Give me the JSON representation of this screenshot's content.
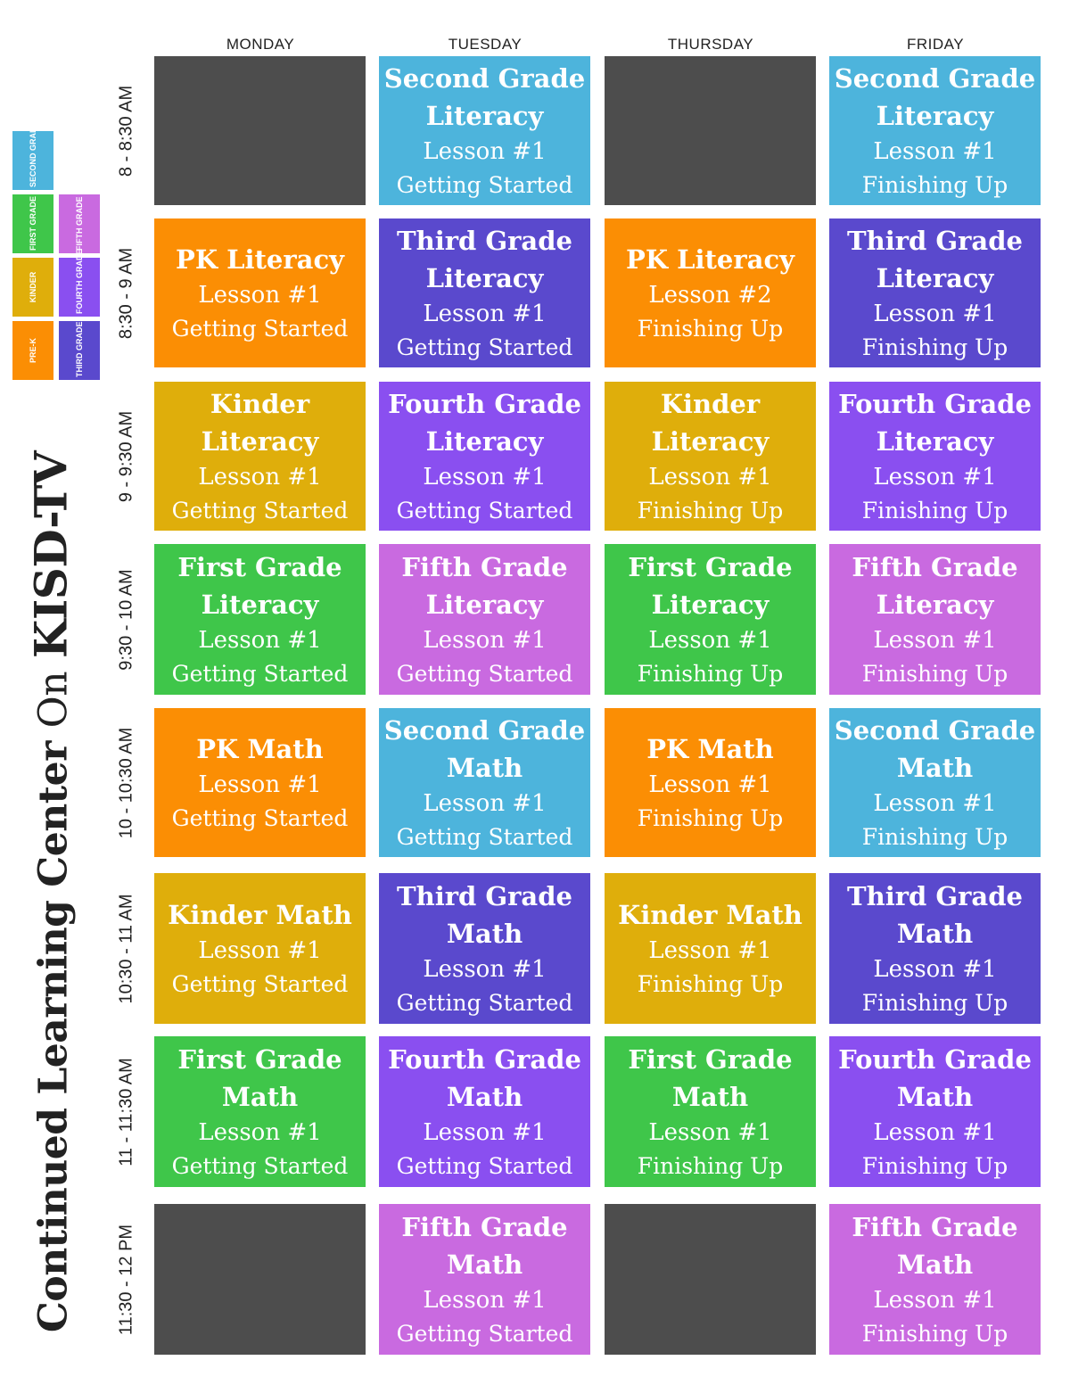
{
  "title": {
    "part1": "Continued Learning Center",
    "part2": "On",
    "part3": "KISD-TV"
  },
  "legend": [
    {
      "label": "SECOND GRADE",
      "color": "#4db4dc"
    },
    {
      "label": "FIRST GRADE",
      "color": "#3fc64a"
    },
    {
      "label": "FIFTH GRADE",
      "color": "#c96ae0"
    },
    {
      "label": "KINDER",
      "color": "#dfae0b"
    },
    {
      "label": "FOURTH GRADE",
      "color": "#8a4ff0"
    },
    {
      "label": "PRE-K",
      "color": "#fb8e04"
    },
    {
      "label": "THIRD GRADE",
      "color": "#5a49cd"
    }
  ],
  "days": [
    "MONDAY",
    "TUESDAY",
    "THURSDAY",
    "FRIDAY"
  ],
  "times": [
    "8 - 8:30 AM",
    "8:30 - 9 AM",
    "9 - 9:30 AM",
    "9:30 - 10 AM",
    "10 - 10:30 AM",
    "10:30 - 11 AM",
    "11 - 11:30 AM",
    "11:30 - 12 PM"
  ],
  "schedule": [
    [
      {
        "lines": [],
        "color": "#4d4d4d"
      },
      {
        "lines": [
          "Second Grade",
          "Literacy",
          "Lesson #1",
          "Getting Started"
        ],
        "color": "#4db4dc"
      },
      {
        "lines": [],
        "color": "#4d4d4d"
      },
      {
        "lines": [
          "Second Grade",
          "Literacy",
          "Lesson #1",
          "Finishing Up"
        ],
        "color": "#4db4dc"
      }
    ],
    [
      {
        "lines": [
          "PK Literacy",
          "Lesson #1",
          "Getting Started"
        ],
        "color": "#fb8e04"
      },
      {
        "lines": [
          "Third Grade",
          "Literacy",
          "Lesson #1",
          "Getting Started"
        ],
        "color": "#5a49cd"
      },
      {
        "lines": [
          "PK Literacy",
          "Lesson #2",
          "Finishing Up"
        ],
        "color": "#fb8e04"
      },
      {
        "lines": [
          "Third Grade",
          "Literacy",
          "Lesson #1",
          "Finishing Up"
        ],
        "color": "#5a49cd"
      }
    ],
    [
      {
        "lines": [
          "Kinder",
          "Literacy",
          "Lesson #1",
          "Getting Started"
        ],
        "color": "#dfae0b"
      },
      {
        "lines": [
          "Fourth Grade",
          "Literacy",
          "Lesson #1",
          "Getting Started"
        ],
        "color": "#8a4ff0"
      },
      {
        "lines": [
          "Kinder",
          "Literacy",
          "Lesson #1",
          "Finishing Up"
        ],
        "color": "#dfae0b"
      },
      {
        "lines": [
          "Fourth Grade",
          "Literacy",
          "Lesson #1",
          "Finishing Up"
        ],
        "color": "#8a4ff0"
      }
    ],
    [
      {
        "lines": [
          "First Grade",
          "Literacy",
          "Lesson #1",
          "Getting Started"
        ],
        "color": "#3fc64a"
      },
      {
        "lines": [
          "Fifth Grade",
          "Literacy",
          "Lesson #1",
          "Getting Started"
        ],
        "color": "#c96ae0"
      },
      {
        "lines": [
          "First Grade",
          "Literacy",
          "Lesson #1",
          "Finishing Up"
        ],
        "color": "#3fc64a"
      },
      {
        "lines": [
          "Fifth Grade",
          "Literacy",
          "Lesson #1",
          "Finishing Up"
        ],
        "color": "#c96ae0"
      }
    ],
    [
      {
        "lines": [
          "PK Math",
          "Lesson #1",
          "Getting Started"
        ],
        "color": "#fb8e04"
      },
      {
        "lines": [
          "Second Grade",
          "Math",
          "Lesson #1",
          "Getting Started"
        ],
        "color": "#4db4dc"
      },
      {
        "lines": [
          "PK Math",
          "Lesson #1",
          "Finishing Up"
        ],
        "color": "#fb8e04"
      },
      {
        "lines": [
          "Second Grade",
          "Math",
          "Lesson #1",
          "Finishing Up"
        ],
        "color": "#4db4dc"
      }
    ],
    [
      {
        "lines": [
          "Kinder Math",
          "Lesson #1",
          "Getting Started"
        ],
        "color": "#dfae0b"
      },
      {
        "lines": [
          "Third Grade",
          "Math",
          "Lesson #1",
          "Getting Started"
        ],
        "color": "#5a49cd"
      },
      {
        "lines": [
          "Kinder Math",
          "Lesson #1",
          "Finishing Up"
        ],
        "color": "#dfae0b"
      },
      {
        "lines": [
          "Third Grade",
          "Math",
          "Lesson #1",
          "Finishing Up"
        ],
        "color": "#5a49cd"
      }
    ],
    [
      {
        "lines": [
          "First Grade",
          "Math",
          "Lesson #1",
          "Getting Started"
        ],
        "color": "#3fc64a"
      },
      {
        "lines": [
          "Fourth Grade",
          "Math",
          "Lesson #1",
          "Getting Started"
        ],
        "color": "#8a4ff0"
      },
      {
        "lines": [
          "First Grade",
          "Math",
          "Lesson #1",
          "Finishing Up"
        ],
        "color": "#3fc64a"
      },
      {
        "lines": [
          "Fourth Grade",
          "Math",
          "Lesson #1",
          "Finishing Up"
        ],
        "color": "#8a4ff0"
      }
    ],
    [
      {
        "lines": [],
        "color": "#4d4d4d"
      },
      {
        "lines": [
          "Fifth Grade",
          "Math",
          "Lesson #1",
          "Getting Started"
        ],
        "color": "#c96ae0"
      },
      {
        "lines": [],
        "color": "#4d4d4d"
      },
      {
        "lines": [
          "Fifth Grade",
          "Math",
          "Lesson #1",
          "Finishing Up"
        ],
        "color": "#c96ae0"
      }
    ]
  ]
}
